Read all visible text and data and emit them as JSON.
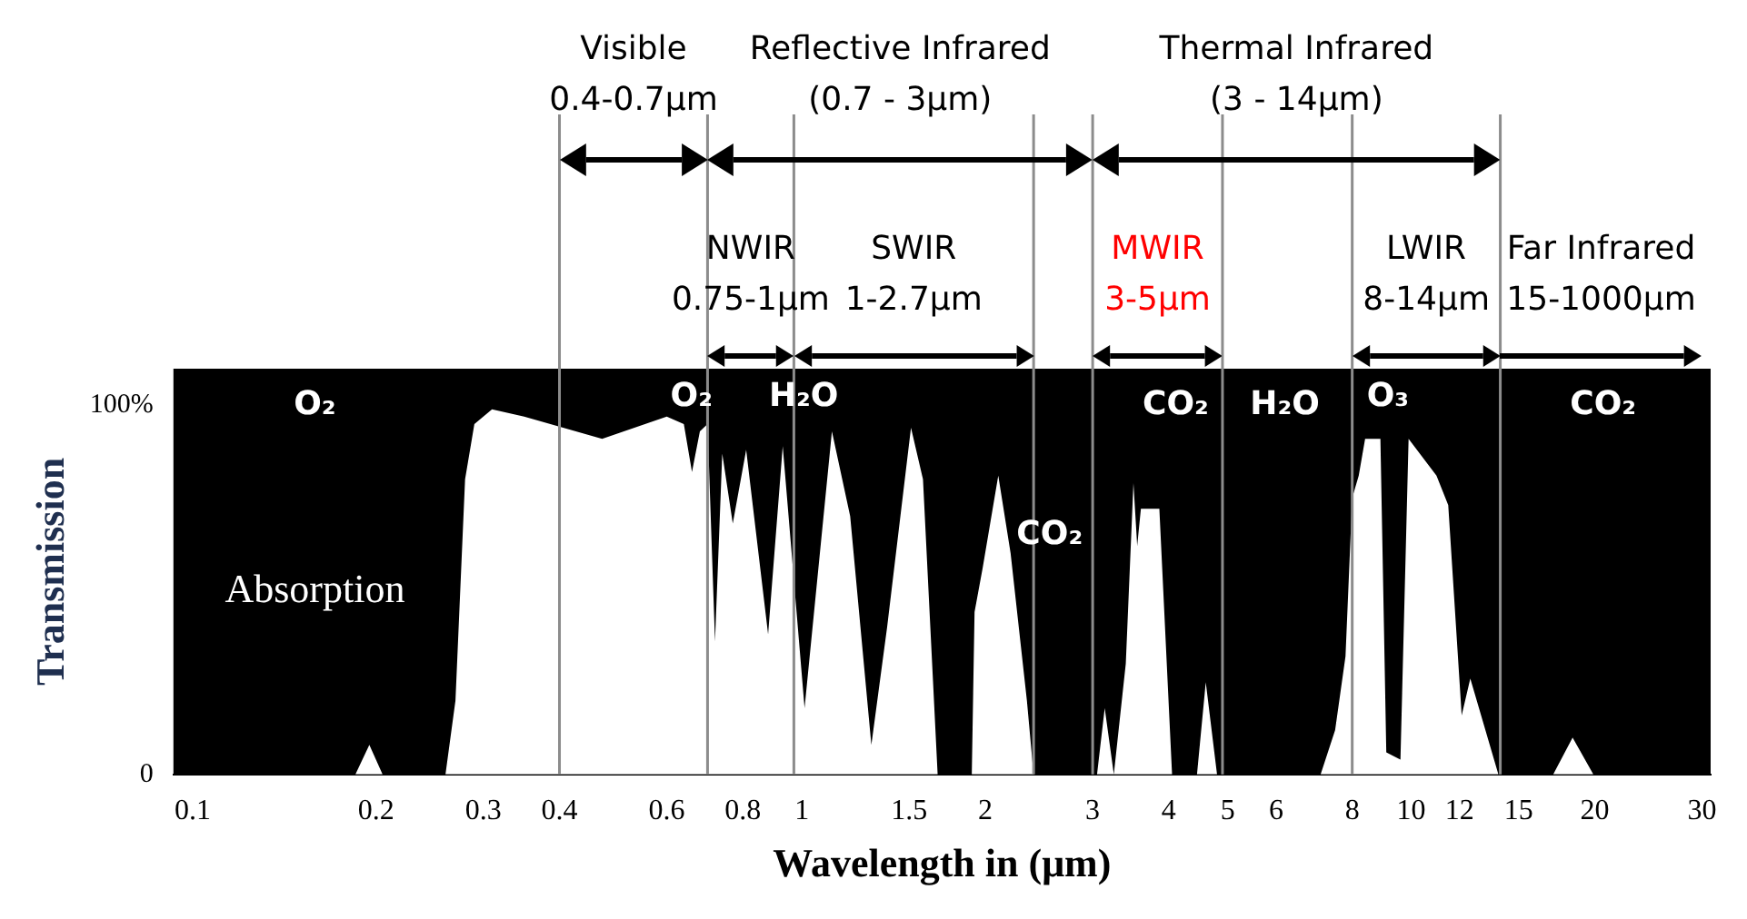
{
  "chart_data": {
    "type": "area",
    "xlabel": "Wavelength in (μm)",
    "ylabel": "Transmission",
    "log": "x",
    "grid": false,
    "legend": false,
    "marker": "none",
    "color": "#ffffff",
    "xlim": [
      0.093,
      31
    ],
    "xticks": [
      0.1,
      0.2,
      0.3,
      0.4,
      0.6,
      0.8,
      1,
      1.5,
      2,
      3,
      4,
      5,
      6,
      8,
      10,
      12,
      15,
      20,
      30
    ],
    "ylim": [
      0,
      110
    ],
    "yticks": [
      {
        "value": 0,
        "label": "0"
      },
      {
        "value": 100,
        "label": "100%"
      }
    ],
    "x": [
      0.093,
      0.185,
      0.195,
      0.205,
      0.26,
      0.27,
      0.28,
      0.29,
      0.31,
      0.35,
      0.47,
      0.6,
      0.64,
      0.66,
      0.68,
      0.7,
      0.72,
      0.74,
      0.77,
      0.81,
      0.88,
      0.93,
      1.01,
      1.12,
      1.2,
      1.3,
      1.38,
      1.51,
      1.58,
      1.67,
      1.9,
      1.92,
      1.98,
      2.1,
      2.2,
      2.34,
      2.4,
      3.05,
      3.14,
      3.25,
      3.4,
      3.5,
      3.55,
      3.6,
      3.86,
      4.05,
      4.45,
      4.6,
      4.8,
      7.1,
      7.5,
      7.8,
      8.0,
      8.2,
      8.4,
      8.9,
      9.1,
      9.6,
      9.9,
      11.0,
      11.5,
      12.1,
      12.5,
      13.9,
      17.1,
      18.4,
      19.9,
      31
    ],
    "values": [
      0,
      0,
      8,
      0,
      0,
      20,
      80,
      95,
      99,
      97,
      91,
      97,
      95,
      82,
      93,
      95,
      36,
      87,
      68,
      88,
      38,
      89,
      18,
      93,
      70,
      8,
      40,
      94,
      80,
      0,
      0,
      44,
      56,
      81,
      60,
      20,
      0,
      0,
      18,
      0,
      30,
      79,
      62,
      72,
      72,
      0,
      0,
      25,
      0,
      0,
      12,
      32,
      75,
      81,
      91,
      91,
      6,
      4,
      91,
      81,
      73,
      16,
      26,
      0,
      0,
      10,
      0,
      0
    ],
    "ref_lines": [
      {
        "axis": "x",
        "value": 0.4
      },
      {
        "axis": "x",
        "value": 0.7
      },
      {
        "axis": "x",
        "value": 0.97
      },
      {
        "axis": "x",
        "value": 2.4
      },
      {
        "axis": "x",
        "value": 3
      },
      {
        "axis": "x",
        "value": 4.9
      },
      {
        "axis": "x",
        "value": 8
      },
      {
        "axis": "x",
        "value": 14
      }
    ],
    "annotations": [
      "O₂",
      "Absorption",
      "O₂",
      "H₂O",
      "CO₂",
      "CO₂",
      "H₂O",
      "O₃",
      "CO₂",
      "Visible\n0.4-0.7μm",
      "Reflective Infrared\n(0.7 - 3μm)",
      "Thermal Infrared\n(3 - 14μm)",
      "NWIR\n0.75-1μm",
      "SWIR\n1-2.7μm",
      "MWIR\n3-5μm",
      "LWIR\n8-14μm",
      "Far Infrared\n15-1000μm"
    ]
  }
}
